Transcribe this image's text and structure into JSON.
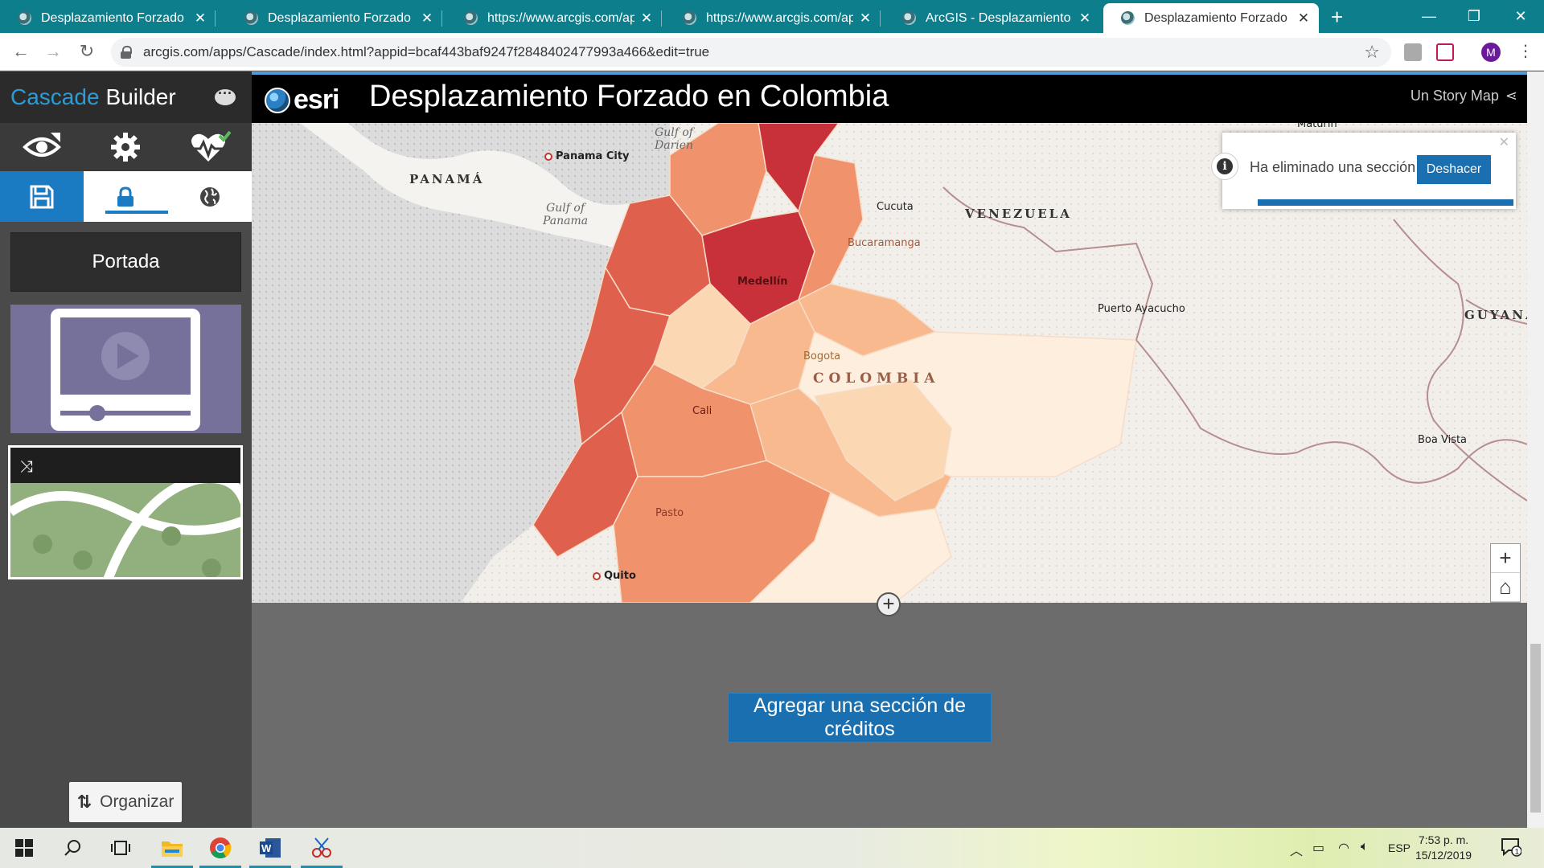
{
  "browser": {
    "tabs": [
      {
        "title": "Desplazamiento Forzado en C",
        "active": false
      },
      {
        "title": "Desplazamiento Forzado en C",
        "active": false
      },
      {
        "title": "https://www.arcgis.com/app",
        "active": false
      },
      {
        "title": "https://www.arcgis.com/app",
        "active": false
      },
      {
        "title": "ArcGIS - Desplazamiento For",
        "active": false
      },
      {
        "title": "Desplazamiento Forzado en C",
        "active": true
      }
    ],
    "url": "arcgis.com/apps/Cascade/index.html?appid=bcaf443baf9247f2848402477993a466&edit=true",
    "profile_initial": "M"
  },
  "builder": {
    "brand_part1": "Cascade",
    "brand_part2": "Builder",
    "sections": [
      {
        "label": "Portada"
      }
    ],
    "organize_label": "Organizar"
  },
  "story": {
    "logo_text": "esri",
    "title": "Desplazamiento Forzado en Colombia",
    "storymap_link": "Un Story Map"
  },
  "map": {
    "labels": {
      "panama": "PANAMÁ",
      "venezuela": "VENEZUELA",
      "guyana": "GUYANA",
      "colombia": "COLOMBIA",
      "gulf_darien": "Gulf of\nDarien",
      "gulf_panama": "Gulf of\nPanama",
      "panama_city": "Panama City",
      "cucuta": "Cucuta",
      "bucaramanga": "Bucaramanga",
      "medellin": "Medellín",
      "bogota": "Bogota",
      "cali": "Cali",
      "pasto": "Pasto",
      "quito": "Quito",
      "puerto_ayacucho": "Puerto Ayacucho",
      "boa_vista": "Boa Vista",
      "maturin": "Maturin"
    },
    "choropleth_colors": [
      "#c8313a",
      "#e0604e",
      "#f0926c",
      "#f7b98d",
      "#fbd7b3",
      "#fdeedd"
    ]
  },
  "toast": {
    "message": "Ha eliminado una sección",
    "undo_label": "Deshacer"
  },
  "credits_button": "Agregar una sección de créditos",
  "taskbar": {
    "language": "ESP",
    "time": "7:53 p. m.",
    "date": "15/12/2019",
    "notifications": "1"
  }
}
